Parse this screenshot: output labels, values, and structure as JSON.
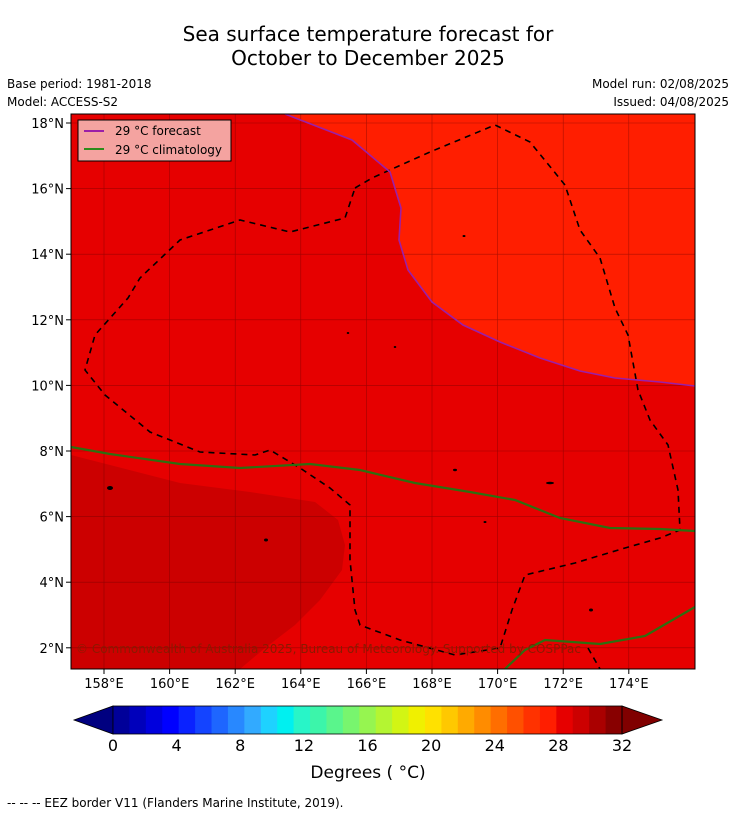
{
  "title_line1": "Sea surface temperature forecast for",
  "title_line2": "October to December 2025",
  "base_period": "Base period: 1981-2018",
  "model": "Model: ACCESS-S2",
  "model_run": "Model run: 02/08/2025",
  "issued": "Issued: 04/08/2025",
  "map": {
    "lon_labels": [
      "158°E",
      "160°E",
      "162°E",
      "164°E",
      "166°E",
      "168°E",
      "170°E",
      "172°E",
      "174°E"
    ],
    "lat_labels": [
      "18°N",
      "16°N",
      "14°N",
      "12°N",
      "10°N",
      "8°N",
      "6°N",
      "4°N",
      "2°N"
    ],
    "legend": [
      {
        "label": "29 °C  forecast",
        "color": "#9b1fa8"
      },
      {
        "label": "29 °C  climatology",
        "color": "#2e8b1a"
      }
    ],
    "copyright": "© Commonwealth of Australia 2025, Bureau of Meteorology. Supported by COSPPac",
    "colors": {
      "warm_high": "#e60000",
      "warm_mid": "#ff1e00",
      "warm_top": "#cc0000"
    }
  },
  "colorbar": {
    "ticks": [
      "0",
      "4",
      "8",
      "12",
      "16",
      "20",
      "24",
      "28",
      "32"
    ],
    "colors": [
      "#000099",
      "#0000bb",
      "#0000dd",
      "#0000ff",
      "#0a22ff",
      "#1444ff",
      "#1e66ff",
      "#2888ff",
      "#32aaff",
      "#1ed2ff",
      "#00f0f0",
      "#28f5c8",
      "#3cf5aa",
      "#5af58c",
      "#78f56e",
      "#96f550",
      "#b4f532",
      "#d2f514",
      "#f0f000",
      "#ffe100",
      "#ffc800",
      "#ffaa00",
      "#ff8c00",
      "#ff6e00",
      "#ff5000",
      "#ff3200",
      "#ff1e00",
      "#e60000",
      "#cc0000",
      "#aa0000",
      "#880000"
    ],
    "under_color": "#000080",
    "over_color": "#800000",
    "label": "Degrees ( °C)"
  },
  "footer": "--  --  -- EEZ border V11 (Flanders Marine Institute, 2019)."
}
